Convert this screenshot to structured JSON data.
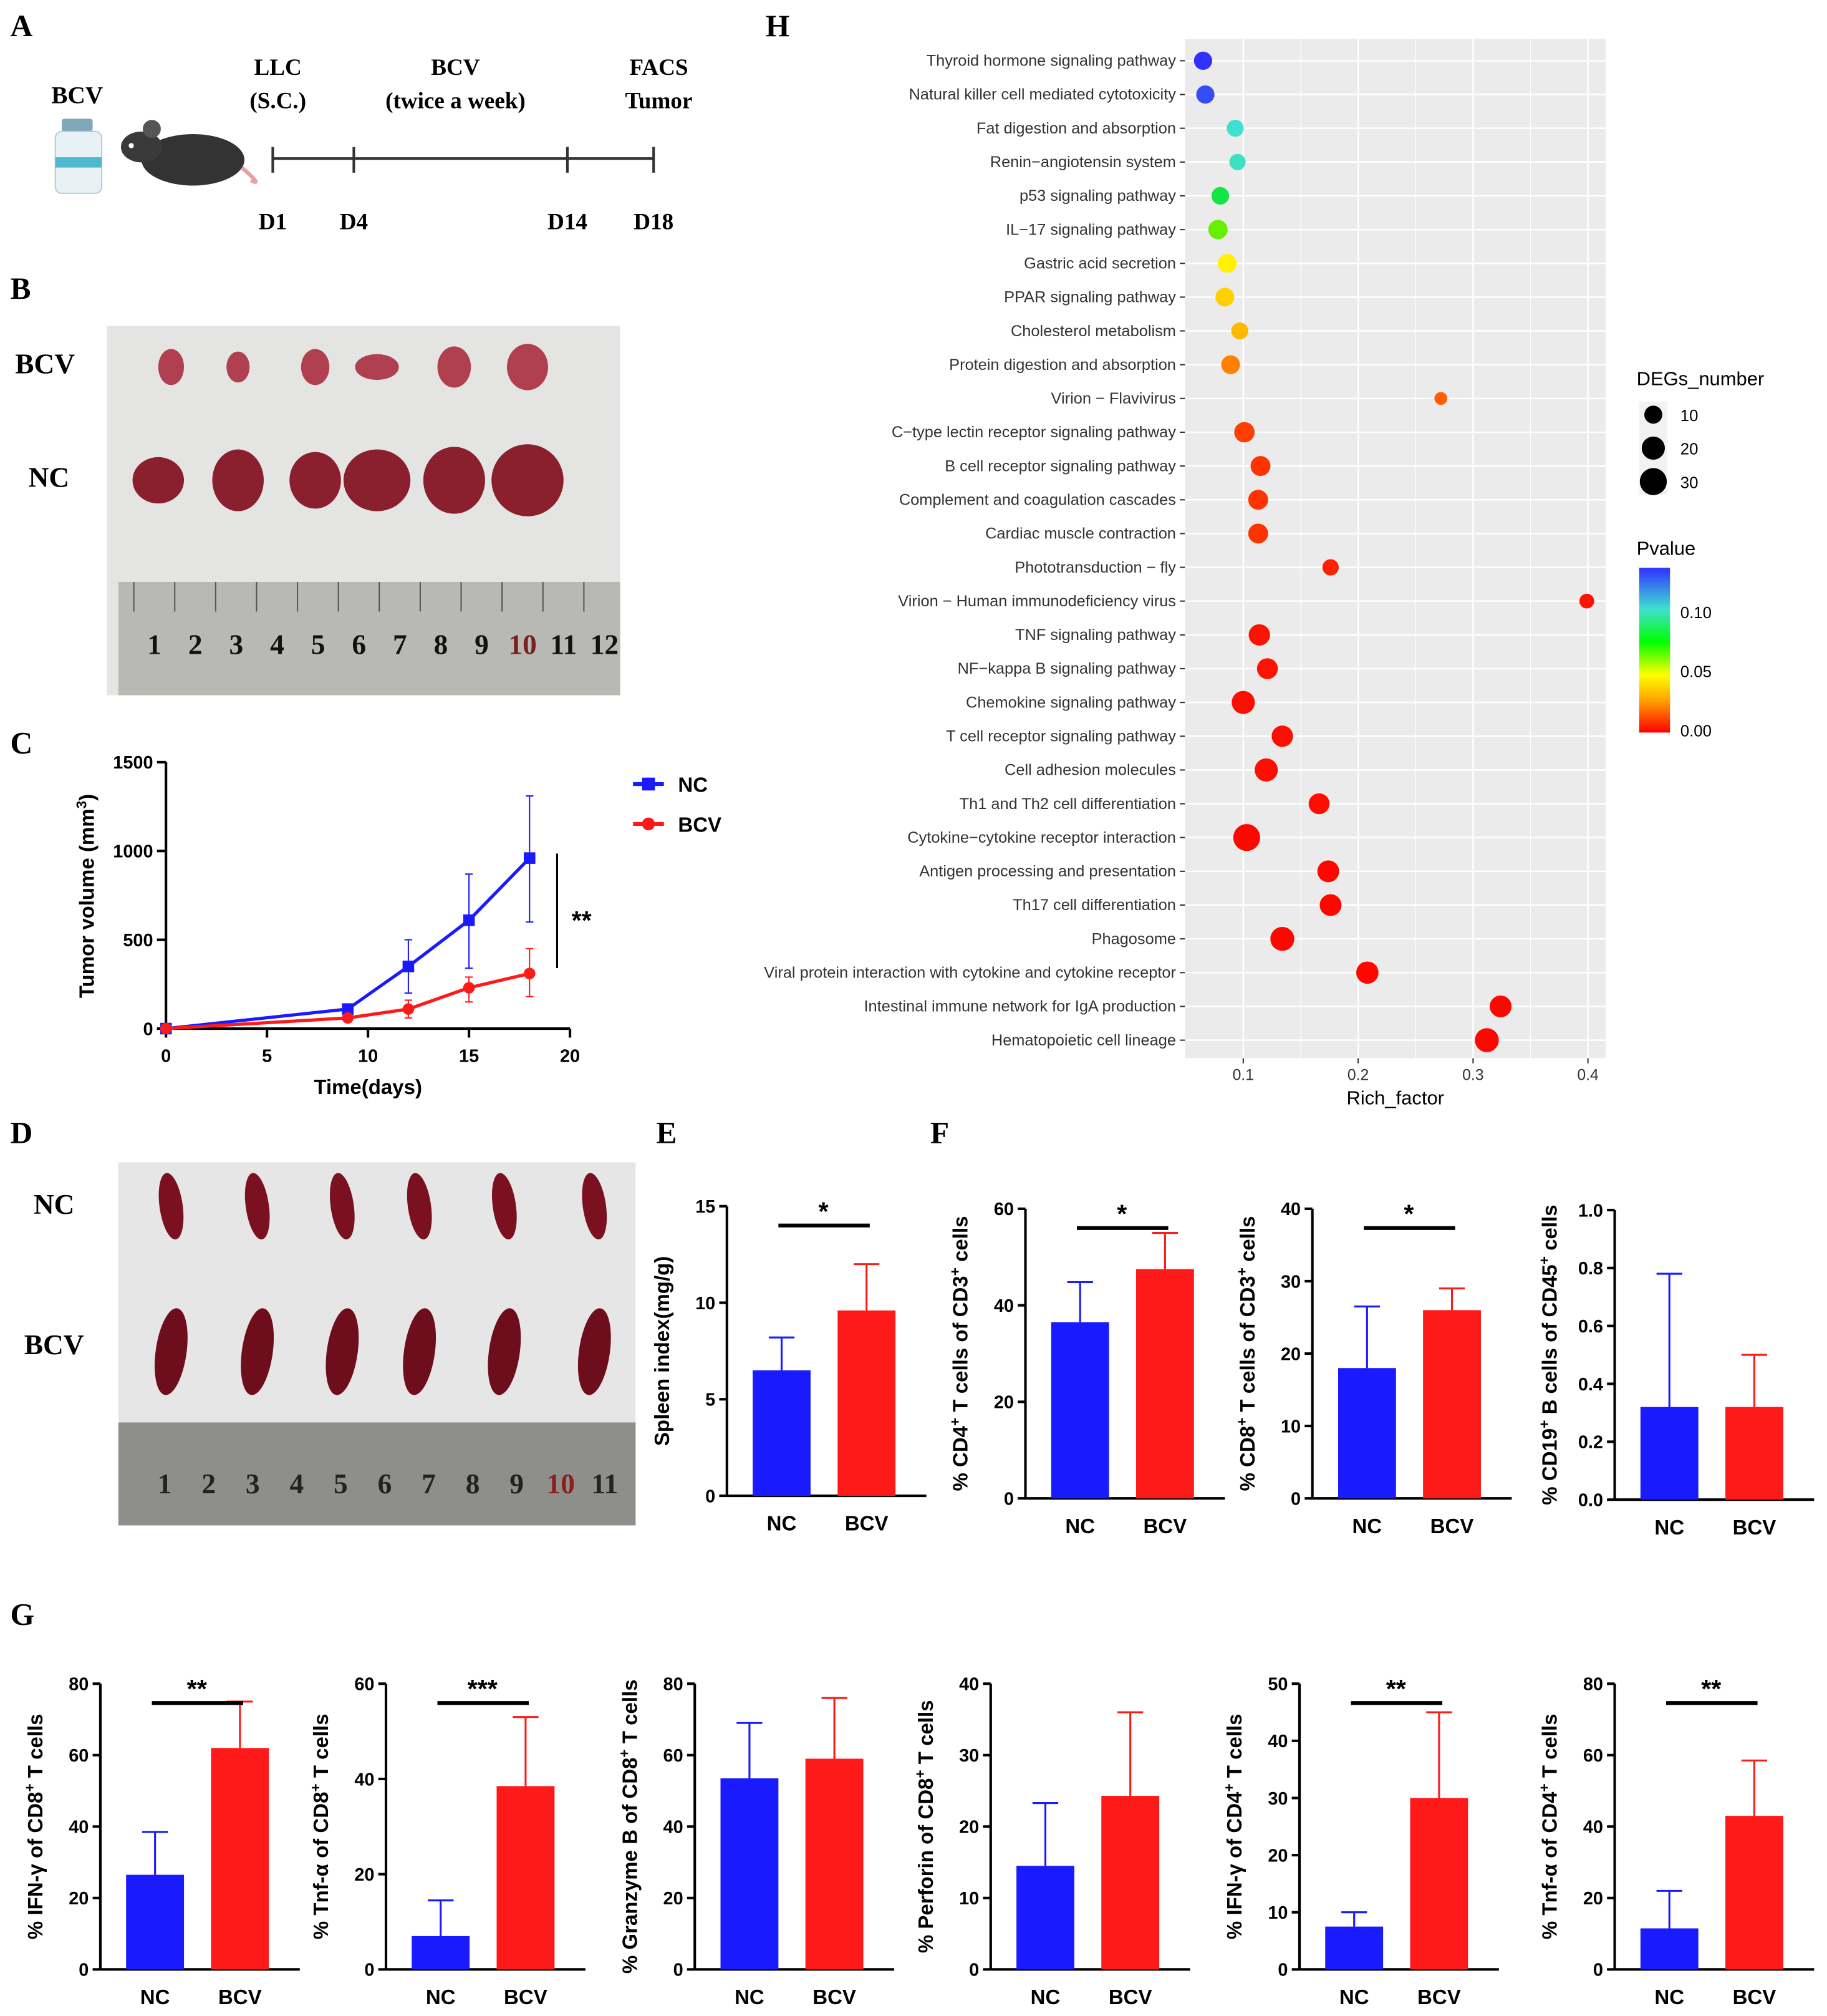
{
  "panel_letters": {
    "A": "A",
    "B": "B",
    "C": "C",
    "D": "D",
    "E": "E",
    "F": "F",
    "G": "G",
    "H": "H"
  },
  "panel_a": {
    "vaccine_label": "BCV",
    "steps": [
      {
        "title1": "LLC",
        "title2": "(S.C.)",
        "day": "D1"
      },
      {
        "title1": "",
        "title2": "",
        "day": "D4"
      },
      {
        "title1": "BCV",
        "title2": "(twice a week)",
        "day": "D14"
      },
      {
        "title1": "FACS",
        "title2": "Tumor",
        "day": "D18"
      }
    ]
  },
  "panel_b": {
    "row_labels": [
      "BCV",
      "NC"
    ],
    "ruler_numbers": [
      "1",
      "2",
      "3",
      "4",
      "5",
      "6",
      "7",
      "8",
      "9",
      "10",
      "11",
      "12"
    ]
  },
  "panel_d": {
    "row_labels": [
      "NC",
      "BCV"
    ],
    "ruler_numbers": [
      "1",
      "2",
      "3",
      "4",
      "5",
      "6",
      "7",
      "8",
      "9",
      "10",
      "11"
    ]
  },
  "colors": {
    "nc": "#1a1aff",
    "bcv": "#ff1a1a",
    "plot_bg": "#ebebeb"
  },
  "chart_data": [
    {
      "id": "C",
      "type": "line",
      "xlabel": "Time(days)",
      "ylabel": "Tumor volume (mm",
      "ylabel_sup": "3",
      "ylabel_end": ")",
      "xlim": [
        0,
        20
      ],
      "ylim": [
        0,
        1500
      ],
      "xticks": [
        0,
        5,
        10,
        15,
        20
      ],
      "yticks": [
        0,
        500,
        1000,
        1500
      ],
      "significance": "**",
      "series": [
        {
          "name": "NC",
          "x": [
            0,
            9,
            12,
            15,
            18
          ],
          "y": [
            0,
            110,
            350,
            610,
            960
          ],
          "err_hi": [
            0,
            120,
            500,
            870,
            1310
          ],
          "err_lo": [
            0,
            100,
            200,
            340,
            600
          ]
        },
        {
          "name": "BCV",
          "x": [
            0,
            9,
            12,
            15,
            18
          ],
          "y": [
            0,
            60,
            110,
            230,
            310
          ],
          "err_hi": [
            0,
            70,
            160,
            290,
            450
          ],
          "err_lo": [
            0,
            50,
            60,
            150,
            180
          ]
        }
      ]
    },
    {
      "id": "E",
      "type": "bar",
      "categories": [
        "NC",
        "BCV"
      ],
      "values": [
        6.5,
        9.6
      ],
      "errors": [
        8.2,
        12.0
      ],
      "ylim": [
        0,
        15
      ],
      "yticks": [
        0,
        5,
        10,
        15
      ],
      "ylabel_parts": [
        "Spleen index(mg/g)"
      ],
      "significance": "*"
    },
    {
      "id": "F1",
      "type": "bar",
      "categories": [
        "NC",
        "BCV"
      ],
      "values": [
        36.5,
        47.5
      ],
      "errors": [
        44.8,
        55
      ],
      "ylim": [
        0,
        60
      ],
      "yticks": [
        0,
        20,
        40,
        60
      ],
      "ylabel_parts": [
        "% CD4",
        "+",
        " T cells of CD3",
        "+",
        " cells"
      ],
      "significance": "*"
    },
    {
      "id": "F2",
      "type": "bar",
      "categories": [
        "NC",
        "BCV"
      ],
      "values": [
        18,
        26
      ],
      "errors": [
        26.5,
        29
      ],
      "ylim": [
        0,
        40
      ],
      "yticks": [
        0,
        10,
        20,
        30,
        40
      ],
      "ylabel_parts": [
        "% CD8",
        "+",
        " T cells of CD3",
        "+",
        " cells"
      ],
      "significance": "*"
    },
    {
      "id": "F3",
      "type": "bar",
      "categories": [
        "NC",
        "BCV"
      ],
      "values": [
        0.32,
        0.32
      ],
      "errors": [
        0.78,
        0.5
      ],
      "ylim": [
        0,
        1.0
      ],
      "yticks": [
        "0.0",
        "0.2",
        "0.4",
        "0.6",
        "0.8",
        "1.0"
      ],
      "ylabel_parts": [
        "% CD19",
        "+",
        " B cells of CD45",
        "+",
        " cells"
      ],
      "significance": ""
    },
    {
      "id": "G1",
      "type": "bar",
      "categories": [
        "NC",
        "BCV"
      ],
      "values": [
        26.5,
        62
      ],
      "errors": [
        38.5,
        75
      ],
      "ylim": [
        0,
        80
      ],
      "yticks": [
        0,
        20,
        40,
        60,
        80
      ],
      "ylabel_parts": [
        "% IFN-γ of CD8",
        "+",
        " T cells"
      ],
      "significance": "**"
    },
    {
      "id": "G2",
      "type": "bar",
      "categories": [
        "NC",
        "BCV"
      ],
      "values": [
        7,
        38.5
      ],
      "errors": [
        14.5,
        53
      ],
      "ylim": [
        0,
        60
      ],
      "yticks": [
        0,
        20,
        40,
        60
      ],
      "ylabel_parts": [
        "% Tnf-α of CD8",
        "+",
        " T cells"
      ],
      "significance": "***"
    },
    {
      "id": "G3",
      "type": "bar",
      "categories": [
        "NC",
        "BCV"
      ],
      "values": [
        53.5,
        59
      ],
      "errors": [
        69,
        76
      ],
      "ylim": [
        0,
        80
      ],
      "yticks": [
        0,
        20,
        40,
        60,
        80
      ],
      "ylabel_parts": [
        "% Granzyme B of CD8",
        "+",
        " T cells"
      ],
      "significance": ""
    },
    {
      "id": "G4",
      "type": "bar",
      "categories": [
        "NC",
        "BCV"
      ],
      "values": [
        14.5,
        24.3
      ],
      "errors": [
        23.3,
        36
      ],
      "ylim": [
        0,
        40
      ],
      "yticks": [
        0,
        10,
        20,
        30,
        40
      ],
      "ylabel_parts": [
        "% Perforin  of CD8",
        "+",
        " T cells"
      ],
      "significance": ""
    },
    {
      "id": "G5",
      "type": "bar",
      "categories": [
        "NC",
        "BCV"
      ],
      "values": [
        7.5,
        30
      ],
      "errors": [
        10,
        45
      ],
      "ylim": [
        0,
        50
      ],
      "yticks": [
        0,
        10,
        20,
        30,
        40,
        50
      ],
      "ylabel_parts": [
        "% IFN-γ of CD4",
        "+",
        " T cells"
      ],
      "significance": "**"
    },
    {
      "id": "G6",
      "type": "bar",
      "categories": [
        "NC",
        "BCV"
      ],
      "values": [
        11.5,
        43
      ],
      "errors": [
        22,
        58.5
      ],
      "ylim": [
        0,
        80
      ],
      "yticks": [
        0,
        20,
        40,
        60,
        80
      ],
      "ylabel_parts": [
        "% Tnf-α of CD4",
        "+",
        " T cells"
      ],
      "significance": "**"
    },
    {
      "id": "H",
      "type": "scatter",
      "xlabel": "Rich_factor",
      "xticks": [
        "0.1",
        "0.2",
        "0.3",
        "0.4"
      ],
      "xlim": [
        0.05,
        0.415
      ],
      "size_legend": {
        "title": "DEGs_number",
        "values": [
          10,
          20,
          30
        ]
      },
      "color_legend": {
        "title": "Pvalue",
        "ticks": [
          "0.10",
          "0.05",
          "0.00"
        ],
        "range": [
          0,
          0.13
        ]
      },
      "points": [
        {
          "term": "Thyroid hormone signaling pathway",
          "rich": 0.065,
          "p": 0.13,
          "n": 10
        },
        {
          "term": "Natural killer cell mediated cytotoxicity",
          "rich": 0.067,
          "p": 0.125,
          "n": 10
        },
        {
          "term": "Fat digestion and absorption",
          "rich": 0.093,
          "p": 0.1,
          "n": 8
        },
        {
          "term": "Renin−angiotensin system",
          "rich": 0.095,
          "p": 0.098,
          "n": 7
        },
        {
          "term": "p53 signaling pathway",
          "rich": 0.08,
          "p": 0.08,
          "n": 9
        },
        {
          "term": "IL−17 signaling pathway",
          "rich": 0.078,
          "p": 0.06,
          "n": 12
        },
        {
          "term": "Gastric acid secretion",
          "rich": 0.086,
          "p": 0.042,
          "n": 11
        },
        {
          "term": "PPAR signaling pathway",
          "rich": 0.084,
          "p": 0.035,
          "n": 11
        },
        {
          "term": "Cholesterol metabolism",
          "rich": 0.097,
          "p": 0.03,
          "n": 8
        },
        {
          "term": "Protein digestion and absorption",
          "rich": 0.089,
          "p": 0.02,
          "n": 11
        },
        {
          "term": "Virion − Flavivirus",
          "rich": 0.272,
          "p": 0.015,
          "n": 3
        },
        {
          "term": "C−type lectin receptor signaling pathway",
          "rich": 0.101,
          "p": 0.01,
          "n": 14
        },
        {
          "term": "B cell receptor signaling pathway",
          "rich": 0.115,
          "p": 0.008,
          "n": 13
        },
        {
          "term": "Complement and coagulation cascades",
          "rich": 0.113,
          "p": 0.008,
          "n": 13
        },
        {
          "term": "Cardiac muscle contraction",
          "rich": 0.113,
          "p": 0.008,
          "n": 13
        },
        {
          "term": "Phototransduction − fly",
          "rich": 0.176,
          "p": 0.005,
          "n": 7
        },
        {
          "term": "Virion − Human immunodeficiency virus",
          "rich": 0.399,
          "p": 0.003,
          "n": 5
        },
        {
          "term": "TNF signaling pathway",
          "rich": 0.114,
          "p": 0.003,
          "n": 16
        },
        {
          "term": "NF−kappa B signaling pathway",
          "rich": 0.121,
          "p": 0.003,
          "n": 15
        },
        {
          "term": "Chemokine signaling pathway",
          "rich": 0.1,
          "p": 0.002,
          "n": 20
        },
        {
          "term": "T cell receptor signaling pathway",
          "rich": 0.134,
          "p": 0.002,
          "n": 16
        },
        {
          "term": "Cell adhesion molecules",
          "rich": 0.12,
          "p": 0.002,
          "n": 20
        },
        {
          "term": "Th1 and Th2 cell differentiation",
          "rich": 0.166,
          "p": 0.002,
          "n": 15
        },
        {
          "term": "Cytokine−cytokine receptor interaction",
          "rich": 0.103,
          "p": 0.001,
          "n": 30
        },
        {
          "term": "Antigen processing and presentation",
          "rich": 0.174,
          "p": 0.001,
          "n": 17
        },
        {
          "term": "Th17 cell differentiation",
          "rich": 0.176,
          "p": 0.001,
          "n": 17
        },
        {
          "term": "Phagosome",
          "rich": 0.134,
          "p": 0.001,
          "n": 22
        },
        {
          "term": "Viral protein interaction with cytokine and cytokine receptor",
          "rich": 0.208,
          "p": 0.001,
          "n": 18
        },
        {
          "term": "Intestinal immune network for IgA production",
          "rich": 0.324,
          "p": 0.001,
          "n": 17
        },
        {
          "term": "Hematopoietic cell lineage",
          "rich": 0.312,
          "p": 0.001,
          "n": 22
        }
      ]
    }
  ]
}
